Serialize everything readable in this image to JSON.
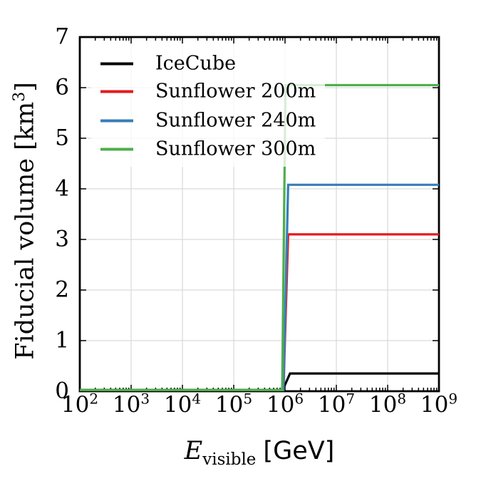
{
  "chart_data": {
    "type": "line",
    "title": "",
    "x_scale": "log",
    "y_scale": "linear",
    "xlim": [
      100,
      1000000000
    ],
    "ylim": [
      0,
      7
    ],
    "xlabel": {
      "symbol": "E",
      "subscript": "visible",
      "unit": "[GeV]"
    },
    "ylabel": {
      "pre": "Fiducial volume [km",
      "sup": "3",
      "post": "]"
    },
    "x_ticks": [
      {
        "base": "10",
        "exp": "2"
      },
      {
        "base": "10",
        "exp": "3"
      },
      {
        "base": "10",
        "exp": "4"
      },
      {
        "base": "10",
        "exp": "5"
      },
      {
        "base": "10",
        "exp": "6"
      },
      {
        "base": "10",
        "exp": "7"
      },
      {
        "base": "10",
        "exp": "8"
      },
      {
        "base": "10",
        "exp": "9"
      }
    ],
    "y_ticks": [
      "0",
      "1",
      "2",
      "3",
      "4",
      "5",
      "6",
      "7"
    ],
    "grid": {
      "show": true,
      "color": "#d9d9d9"
    },
    "axis_color": "#000000",
    "background": "#ffffff",
    "legend": {
      "position": "upper-left"
    },
    "series": [
      {
        "name": "IceCube",
        "color": "#000000",
        "points": [
          [
            100,
            0
          ],
          [
            900000,
            0
          ],
          [
            1250000,
            0.35
          ],
          [
            1000000000,
            0.35
          ]
        ]
      },
      {
        "name": "Sunflower 200m",
        "color": "#e41a1c",
        "points": [
          [
            100,
            0
          ],
          [
            930000,
            0
          ],
          [
            1150000,
            3.1
          ],
          [
            1000000000,
            3.1
          ]
        ]
      },
      {
        "name": "Sunflower 240m",
        "color": "#377eb8",
        "points": [
          [
            100,
            0
          ],
          [
            930000,
            0
          ],
          [
            1150000,
            4.08
          ],
          [
            1000000000,
            4.08
          ]
        ]
      },
      {
        "name": "Sunflower 300m",
        "color": "#4daf4a",
        "points": [
          [
            100,
            0
          ],
          [
            880000,
            0
          ],
          [
            1020000,
            6.05
          ],
          [
            1000000000,
            6.05
          ]
        ]
      }
    ]
  }
}
